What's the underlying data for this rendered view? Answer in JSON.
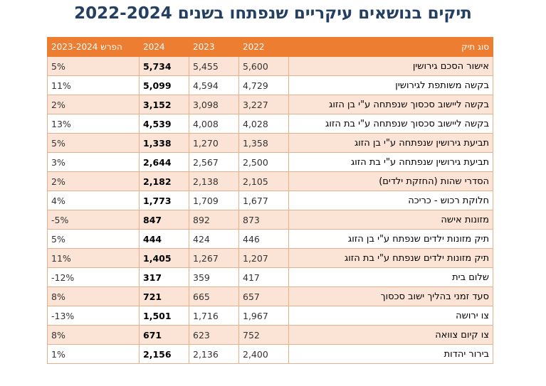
{
  "title": "תיקים בנושאים עיקריים שנפתחו בשנים 2022-2024",
  "table": {
    "headers": {
      "category": "סוג תיק",
      "y2022": "2022",
      "y2023": "2023",
      "y2024": "2024",
      "diff": "הפרש 2023-2024"
    },
    "rows": [
      {
        "category": "אישור הסכם גירושין",
        "y2022": "5,600",
        "y2023": "5,455",
        "y2024": "5,734",
        "diff": "5%"
      },
      {
        "category": "בקשה משותפת לגירושין",
        "y2022": "4,729",
        "y2023": "4,594",
        "y2024": "5,099",
        "diff": "11%"
      },
      {
        "category": "בקשה ליישוב סכסוך שנפתחה ע\"י בן הזוג",
        "y2022": "3,227",
        "y2023": "3,098",
        "y2024": "3,152",
        "diff": "2%"
      },
      {
        "category": "בקשה ליישוב סכסוך שנפתחה ע\"י בת הזוג",
        "y2022": "4,028",
        "y2023": "4,008",
        "y2024": "4,539",
        "diff": "13%"
      },
      {
        "category": "תביעת גירושין שנפתחה ע\"י בן הזוג",
        "y2022": "1,358",
        "y2023": "1,270",
        "y2024": "1,338",
        "diff": "5%"
      },
      {
        "category": "תביעת גירושין שנפתחה ע\"י בת הזוג",
        "y2022": "2,500",
        "y2023": "2,567",
        "y2024": "2,644",
        "diff": "3%"
      },
      {
        "category": "הסדרי שהות (החזקת ילדים)",
        "y2022": "2,105",
        "y2023": "2,138",
        "y2024": "2,182",
        "diff": "2%"
      },
      {
        "category": "חלוקת רכוש - כריכה",
        "y2022": "1,677",
        "y2023": "1,709",
        "y2024": "1,773",
        "diff": "4%"
      },
      {
        "category": "מזונות אישה",
        "y2022": "873",
        "y2023": "892",
        "y2024": "847",
        "diff": "-5%"
      },
      {
        "category": "תיק מזונות ילדים שנפתח ע\"י בן הזוג",
        "y2022": "446",
        "y2023": "424",
        "y2024": "444",
        "diff": "5%"
      },
      {
        "category": "תיק מזונות ילדים שנפתח ע\"י בת הזוג",
        "y2022": "1,207",
        "y2023": "1,267",
        "y2024": "1,405",
        "diff": "11%"
      },
      {
        "category": "שלום בית",
        "y2022": "417",
        "y2023": "359",
        "y2024": "317",
        "diff": "-12%"
      },
      {
        "category": "סעד זמני בהליך ישוב סכסוך",
        "y2022": "657",
        "y2023": "665",
        "y2024": "721",
        "diff": "8%"
      },
      {
        "category": "צו ירושה",
        "y2022": "1,967",
        "y2023": "1,716",
        "y2024": "1,501",
        "diff": "-13%"
      },
      {
        "category": "צו קיום צוואה",
        "y2022": "752",
        "y2023": "623",
        "y2024": "671",
        "diff": "8%"
      },
      {
        "category": "בירור יהדות",
        "y2022": "2,400",
        "y2023": "2,136",
        "y2024": "2,156",
        "diff": "1%"
      }
    ]
  },
  "colors": {
    "header_bg": "#ed7d31",
    "stripe_bg": "#fbe4d5",
    "title": "#243f60"
  }
}
